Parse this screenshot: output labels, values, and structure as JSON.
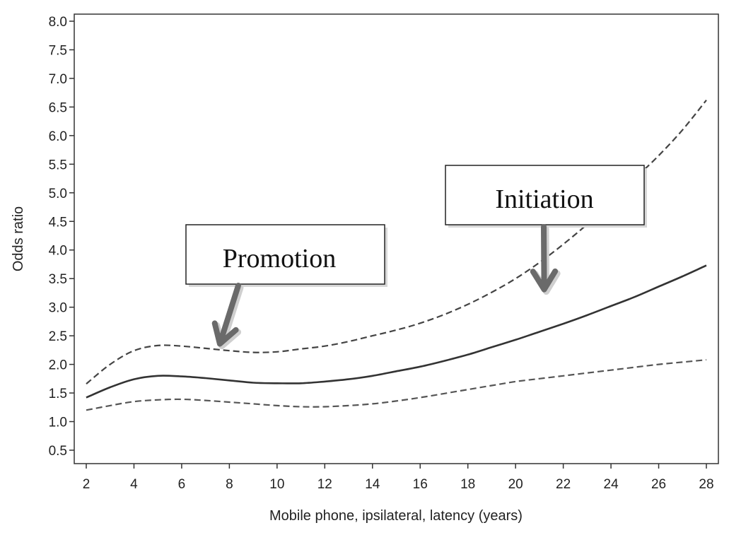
{
  "chart_data": {
    "type": "line",
    "title": "",
    "xlabel": "Mobile phone, ipsilateral, latency (years)",
    "ylabel": "Odds ratio",
    "xlim": [
      2,
      28
    ],
    "ylim": [
      0.5,
      8.0
    ],
    "xticks": [
      "2",
      "4",
      "6",
      "8",
      "10",
      "12",
      "14",
      "16",
      "18",
      "20",
      "22",
      "24",
      "26",
      "28"
    ],
    "yticks": [
      "0.5",
      "1.0",
      "1.5",
      "2.0",
      "2.5",
      "3.0",
      "3.5",
      "4.0",
      "4.5",
      "5.0",
      "5.5",
      "6.0",
      "6.5",
      "7.0",
      "7.5",
      "8.0"
    ],
    "grid": false,
    "series": [
      {
        "style": "dashed",
        "role": "upper",
        "color": "#444444",
        "x": [
          2,
          3,
          4,
          5,
          6,
          7,
          8,
          9,
          10,
          11,
          12,
          13,
          14,
          15,
          16,
          17,
          18,
          19,
          20,
          21,
          22,
          23,
          24,
          25,
          26,
          27,
          28
        ],
        "y": [
          1.66,
          2.0,
          2.24,
          2.33,
          2.32,
          2.28,
          2.24,
          2.21,
          2.22,
          2.27,
          2.32,
          2.4,
          2.5,
          2.6,
          2.72,
          2.87,
          3.05,
          3.26,
          3.5,
          3.78,
          4.1,
          4.45,
          4.85,
          5.25,
          5.65,
          6.1,
          6.62
        ]
      },
      {
        "style": "solid",
        "role": "estimate",
        "color": "#333333",
        "x": [
          2,
          3,
          4,
          5,
          6,
          7,
          8,
          9,
          10,
          11,
          12,
          13,
          14,
          15,
          16,
          17,
          18,
          19,
          20,
          21,
          22,
          23,
          24,
          25,
          26,
          27,
          28
        ],
        "y": [
          1.42,
          1.6,
          1.74,
          1.8,
          1.79,
          1.76,
          1.72,
          1.68,
          1.67,
          1.67,
          1.7,
          1.74,
          1.8,
          1.88,
          1.96,
          2.06,
          2.17,
          2.3,
          2.43,
          2.57,
          2.71,
          2.86,
          3.02,
          3.18,
          3.36,
          3.54,
          3.73
        ]
      },
      {
        "style": "dashed",
        "role": "lower",
        "color": "#555555",
        "x": [
          2,
          3,
          4,
          5,
          6,
          7,
          8,
          9,
          10,
          11,
          12,
          13,
          14,
          15,
          16,
          17,
          18,
          19,
          20,
          21,
          22,
          23,
          24,
          25,
          26,
          27,
          28
        ],
        "y": [
          1.2,
          1.28,
          1.35,
          1.38,
          1.39,
          1.37,
          1.34,
          1.31,
          1.28,
          1.26,
          1.26,
          1.28,
          1.31,
          1.36,
          1.42,
          1.49,
          1.56,
          1.63,
          1.7,
          1.75,
          1.8,
          1.85,
          1.9,
          1.95,
          2.0,
          2.04,
          2.08
        ]
      }
    ],
    "annotations": [
      {
        "text": "Promotion",
        "points_to": {
          "x": 7.6,
          "y": 2.31
        }
      },
      {
        "text": "Initiation",
        "points_to": {
          "x": 21.2,
          "y": 3.26
        }
      }
    ]
  }
}
